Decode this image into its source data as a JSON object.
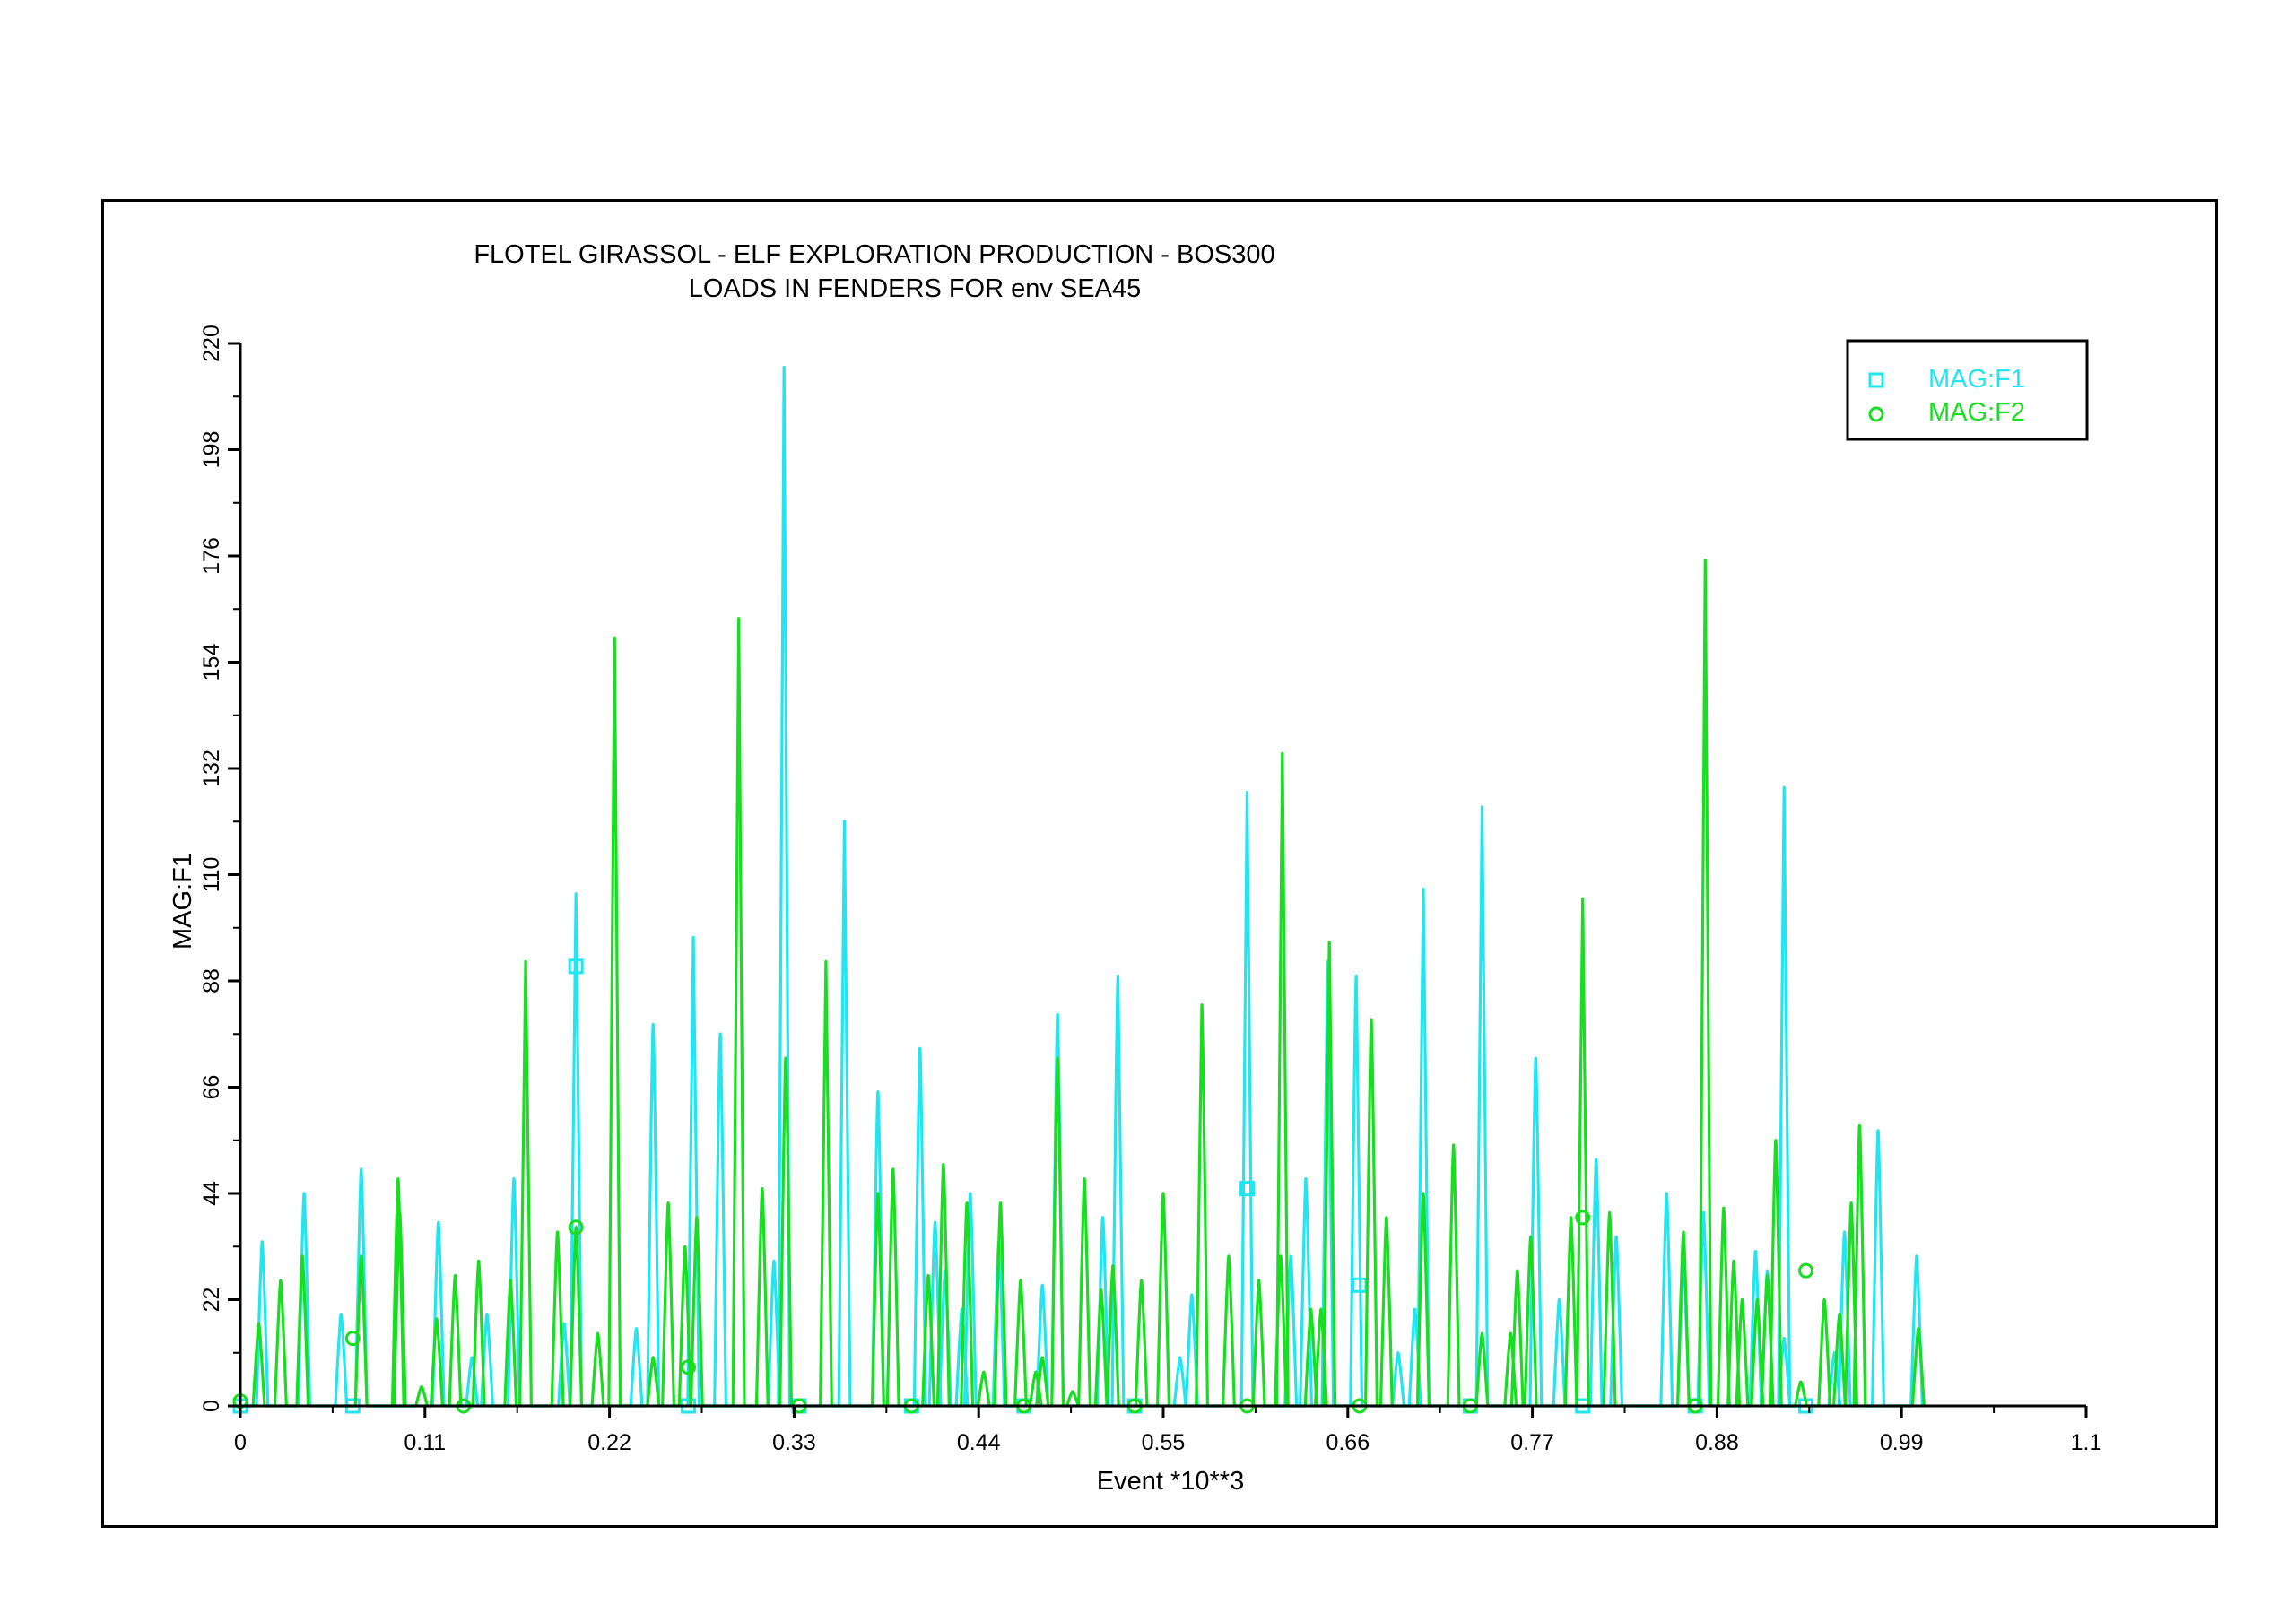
{
  "chart_data": {
    "type": "line",
    "title": "FLOTEL GIRASSOL - ELF EXPLORATION PRODUCTION - BOS300",
    "subtitle": "LOADS IN FENDERS FOR env SEA45",
    "xlabel": "Event *10**3",
    "ylabel": "MAG:F1",
    "xlim": [
      0,
      1.1
    ],
    "ylim": [
      0,
      220
    ],
    "xticks": [
      "0",
      "0.11",
      "0.22",
      "0.33",
      "0.44",
      "0.55",
      "0.66",
      "0.77",
      "0.88",
      "0.99",
      "1.1"
    ],
    "yticks": [
      "0",
      "22",
      "44",
      "66",
      "88",
      "110",
      "132",
      "154",
      "176",
      "198",
      "220"
    ],
    "grid": false,
    "legend_position": "top-right",
    "series": [
      {
        "name": "MAG:F1",
        "color": "#22E5F0",
        "marker": "square",
        "marker_x": [
          0,
          0.067,
          0.2,
          0.267,
          0.333,
          0.4,
          0.467,
          0.533,
          0.6,
          0.667,
          0.733,
          0.8,
          0.867,
          0.933
        ],
        "marker_y": [
          0,
          0,
          91,
          0,
          0,
          0,
          0,
          0,
          45,
          25,
          0,
          0,
          0,
          0
        ],
        "peaks": [
          [
            0.013,
            34
          ],
          [
            0.038,
            44
          ],
          [
            0.06,
            19
          ],
          [
            0.072,
            49
          ],
          [
            0.118,
            38
          ],
          [
            0.138,
            10
          ],
          [
            0.147,
            19
          ],
          [
            0.163,
            47
          ],
          [
            0.193,
            17
          ],
          [
            0.2,
            106
          ],
          [
            0.236,
            16
          ],
          [
            0.246,
            79
          ],
          [
            0.27,
            97
          ],
          [
            0.286,
            77
          ],
          [
            0.318,
            30
          ],
          [
            0.324,
            215
          ],
          [
            0.36,
            121
          ],
          [
            0.38,
            65
          ],
          [
            0.405,
            74
          ],
          [
            0.414,
            38
          ],
          [
            0.42,
            28
          ],
          [
            0.43,
            20
          ],
          [
            0.435,
            44
          ],
          [
            0.452,
            34
          ],
          [
            0.478,
            25
          ],
          [
            0.487,
            81
          ],
          [
            0.514,
            39
          ],
          [
            0.523,
            89
          ],
          [
            0.56,
            10
          ],
          [
            0.567,
            23
          ],
          [
            0.6,
            127
          ],
          [
            0.626,
            31
          ],
          [
            0.635,
            47
          ],
          [
            0.648,
            92
          ],
          [
            0.665,
            89
          ],
          [
            0.69,
            11
          ],
          [
            0.7,
            20
          ],
          [
            0.705,
            107
          ],
          [
            0.74,
            124
          ],
          [
            0.772,
            72
          ],
          [
            0.786,
            22
          ],
          [
            0.808,
            51
          ],
          [
            0.82,
            35
          ],
          [
            0.85,
            44
          ],
          [
            0.86,
            30
          ],
          [
            0.872,
            40
          ],
          [
            0.903,
            32
          ],
          [
            0.91,
            28
          ],
          [
            0.92,
            14
          ],
          [
            0.92,
            128
          ],
          [
            0.95,
            11
          ],
          [
            0.956,
            36
          ],
          [
            0.976,
            57
          ],
          [
            0.999,
            31
          ]
        ]
      },
      {
        "name": "MAG:F2",
        "color": "#18DD20",
        "marker": "circle",
        "marker_x": [
          0,
          0.067,
          0.133,
          0.2,
          0.267,
          0.333,
          0.4,
          0.467,
          0.533,
          0.6,
          0.667,
          0.733,
          0.8,
          0.867,
          0.933
        ],
        "marker_y": [
          1,
          14,
          0,
          37,
          8,
          0,
          0,
          0,
          0,
          0,
          0,
          0,
          39,
          0,
          28
        ],
        "peaks": [
          [
            0.011,
            17
          ],
          [
            0.024,
            26
          ],
          [
            0.037,
            31
          ],
          [
            0.072,
            31
          ],
          [
            0.094,
            47
          ],
          [
            0.095,
            40
          ],
          [
            0.108,
            4
          ],
          [
            0.117,
            18
          ],
          [
            0.128,
            27
          ],
          [
            0.142,
            30
          ],
          [
            0.161,
            26
          ],
          [
            0.17,
            92
          ],
          [
            0.189,
            36
          ],
          [
            0.2,
            37
          ],
          [
            0.213,
            15
          ],
          [
            0.223,
            159
          ],
          [
            0.246,
            10
          ],
          [
            0.255,
            42
          ],
          [
            0.265,
            33
          ],
          [
            0.272,
            39
          ],
          [
            0.297,
            163
          ],
          [
            0.311,
            45
          ],
          [
            0.325,
            72
          ],
          [
            0.349,
            92
          ],
          [
            0.38,
            44
          ],
          [
            0.389,
            49
          ],
          [
            0.41,
            27
          ],
          [
            0.419,
            50
          ],
          [
            0.433,
            42
          ],
          [
            0.443,
            7
          ],
          [
            0.453,
            42
          ],
          [
            0.465,
            26
          ],
          [
            0.474,
            7
          ],
          [
            0.478,
            10
          ],
          [
            0.487,
            72
          ],
          [
            0.496,
            3
          ],
          [
            0.503,
            47
          ],
          [
            0.513,
            24
          ],
          [
            0.52,
            29
          ],
          [
            0.537,
            26
          ],
          [
            0.55,
            44
          ],
          [
            0.573,
            83
          ],
          [
            0.589,
            31
          ],
          [
            0.607,
            26
          ],
          [
            0.62,
            31
          ],
          [
            0.621,
            135
          ],
          [
            0.638,
            20
          ],
          [
            0.644,
            20
          ],
          [
            0.649,
            96
          ],
          [
            0.674,
            80
          ],
          [
            0.683,
            39
          ],
          [
            0.705,
            44
          ],
          [
            0.723,
            54
          ],
          [
            0.74,
            15
          ],
          [
            0.757,
            15
          ],
          [
            0.761,
            28
          ],
          [
            0.769,
            35
          ],
          [
            0.793,
            39
          ],
          [
            0.8,
            105
          ],
          [
            0.816,
            40
          ],
          [
            0.86,
            36
          ],
          [
            0.873,
            175
          ],
          [
            0.884,
            41
          ],
          [
            0.89,
            30
          ],
          [
            0.895,
            22
          ],
          [
            0.904,
            22
          ],
          [
            0.91,
            27
          ],
          [
            0.915,
            55
          ],
          [
            0.93,
            5
          ],
          [
            0.944,
            22
          ],
          [
            0.953,
            19
          ],
          [
            0.96,
            42
          ],
          [
            0.965,
            58
          ],
          [
            1.0,
            16
          ]
        ]
      }
    ]
  }
}
